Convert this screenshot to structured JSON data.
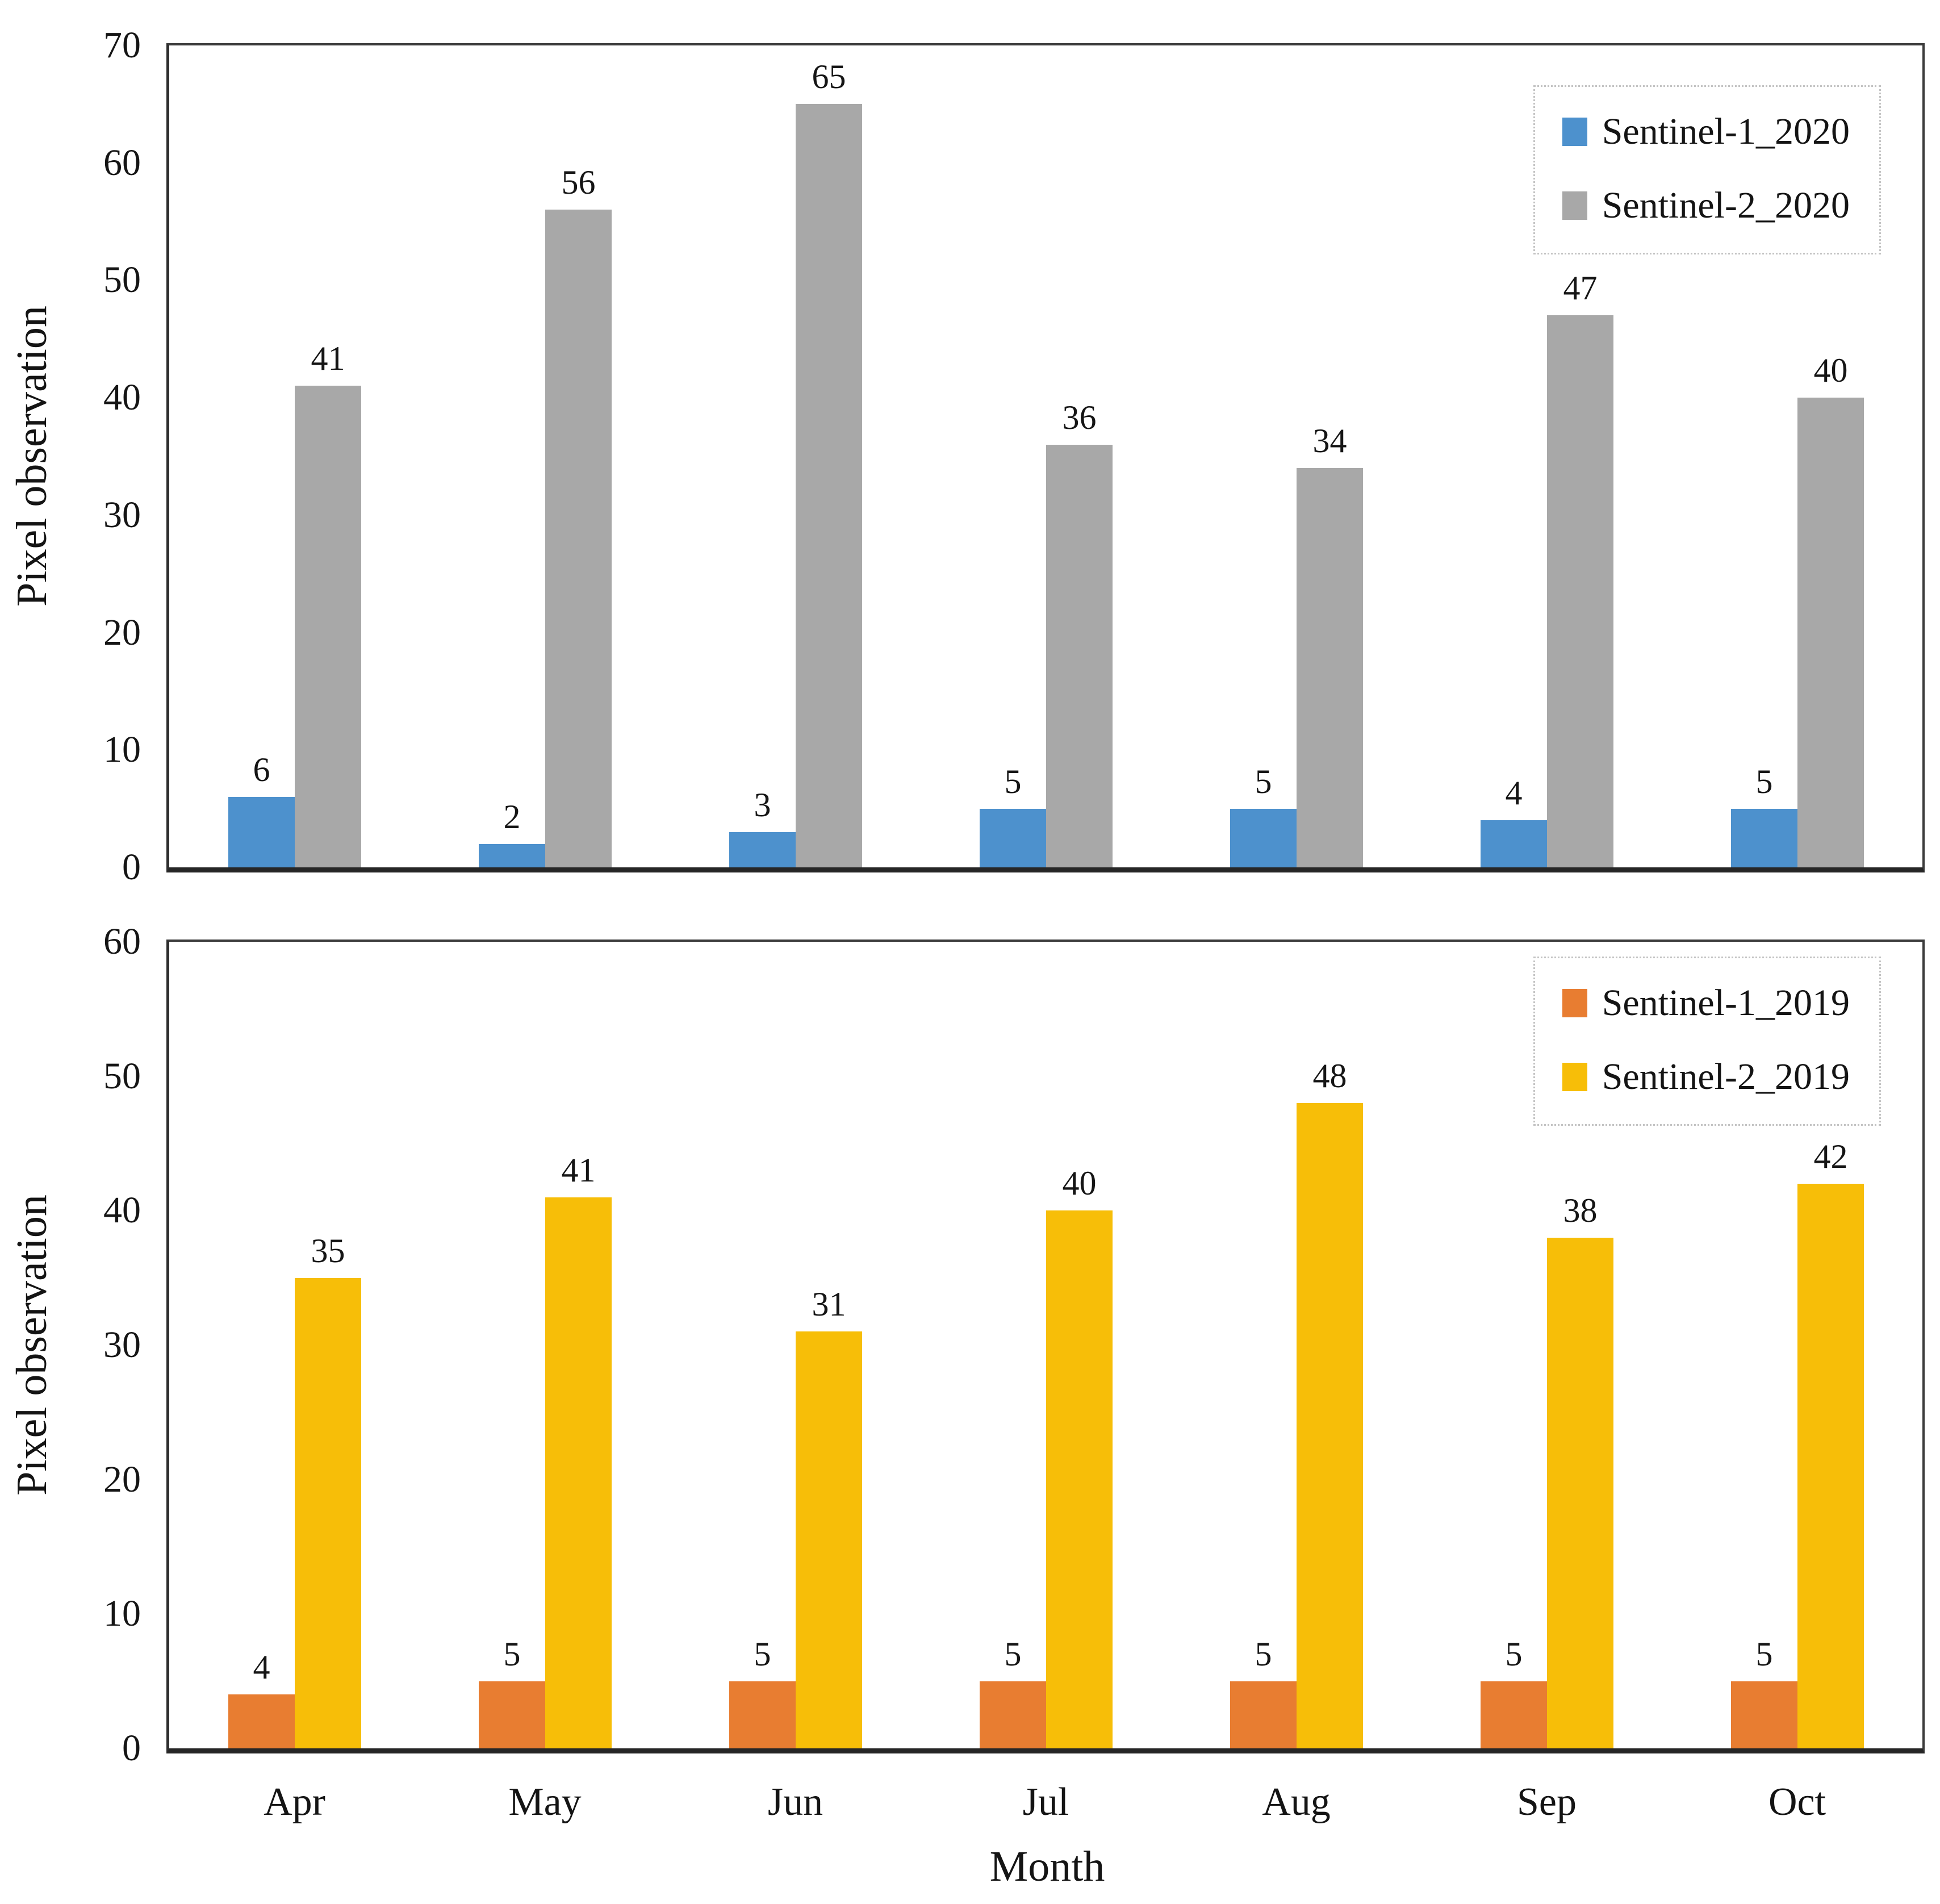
{
  "figure": {
    "xlabel": "Month",
    "months": [
      "Apr",
      "May",
      "Jun",
      "Jul",
      "Aug",
      "Sep",
      "Oct"
    ]
  },
  "chart_data": [
    {
      "type": "bar",
      "panel": "top",
      "categories": [
        "Apr",
        "May",
        "Jun",
        "Jul",
        "Aug",
        "Sep",
        "Oct"
      ],
      "series": [
        {
          "name": "Sentinel-1_2020",
          "color": "#4D91CD",
          "values": [
            6,
            2,
            3,
            5,
            5,
            4,
            5
          ]
        },
        {
          "name": "Sentinel-2_2020",
          "color": "#A8A8A8",
          "values": [
            41,
            56,
            65,
            36,
            34,
            47,
            40
          ]
        }
      ],
      "title": "",
      "xlabel": "Month",
      "ylabel": "Pixel observation",
      "ylim": [
        0,
        70
      ],
      "ytick_step": 10,
      "grid": false,
      "data_labels": true,
      "legend_position": "top-right"
    },
    {
      "type": "bar",
      "panel": "bottom",
      "categories": [
        "Apr",
        "May",
        "Jun",
        "Jul",
        "Aug",
        "Sep",
        "Oct"
      ],
      "series": [
        {
          "name": "Sentinel-1_2019",
          "color": "#E87D31",
          "values": [
            4,
            5,
            5,
            5,
            5,
            5,
            5
          ]
        },
        {
          "name": "Sentinel-2_2019",
          "color": "#F7BE08",
          "values": [
            35,
            41,
            31,
            40,
            48,
            38,
            42
          ]
        }
      ],
      "title": "",
      "xlabel": "Month",
      "ylabel": "Pixel observation",
      "ylim": [
        0,
        60
      ],
      "ytick_step": 10,
      "grid": false,
      "data_labels": true,
      "legend_position": "top-right"
    }
  ]
}
